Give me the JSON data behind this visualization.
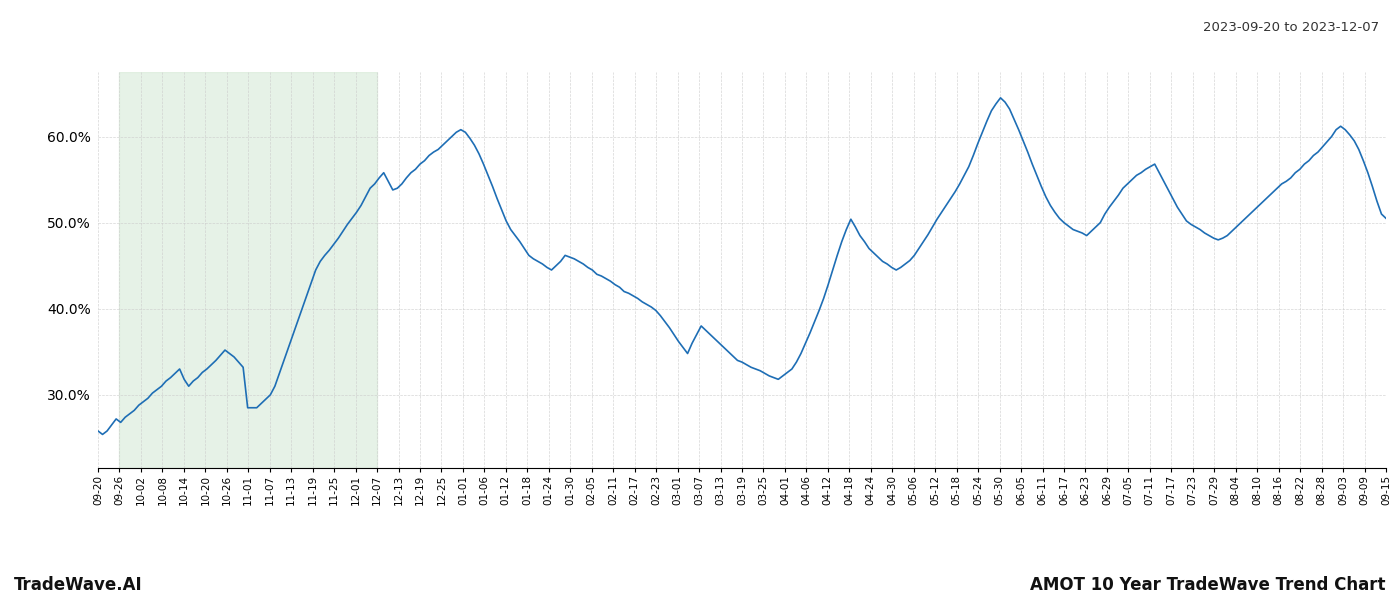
{
  "title_top_right": "2023-09-20 to 2023-12-07",
  "footer_left": "TradeWave.AI",
  "footer_right": "AMOT 10 Year TradeWave Trend Chart",
  "line_color": "#1e6eb5",
  "shade_color": "#d6ead7",
  "shade_alpha": 0.6,
  "background_color": "#ffffff",
  "grid_color": "#cccccc",
  "ylim": [
    0.215,
    0.675
  ],
  "yticks": [
    0.3,
    0.4,
    0.5,
    0.6
  ],
  "x_labels": [
    "09-20",
    "09-26",
    "10-02",
    "10-08",
    "10-14",
    "10-20",
    "10-26",
    "11-01",
    "11-07",
    "11-13",
    "11-19",
    "11-25",
    "12-01",
    "12-07",
    "12-13",
    "12-19",
    "12-25",
    "01-01",
    "01-06",
    "01-12",
    "01-18",
    "01-24",
    "01-30",
    "02-05",
    "02-11",
    "02-17",
    "02-23",
    "03-01",
    "03-07",
    "03-13",
    "03-19",
    "03-25",
    "04-01",
    "04-06",
    "04-12",
    "04-18",
    "04-24",
    "04-30",
    "05-06",
    "05-12",
    "05-18",
    "05-24",
    "05-30",
    "06-05",
    "06-11",
    "06-17",
    "06-23",
    "06-29",
    "07-05",
    "07-11",
    "07-17",
    "07-23",
    "07-29",
    "08-04",
    "08-10",
    "08-16",
    "08-22",
    "08-28",
    "09-03",
    "09-09",
    "09-15"
  ],
  "shade_start_label": "09-26",
  "shade_end_label": "12-07",
  "values": [
    0.258,
    0.254,
    0.258,
    0.265,
    0.272,
    0.268,
    0.274,
    0.278,
    0.282,
    0.288,
    0.292,
    0.296,
    0.302,
    0.306,
    0.31,
    0.316,
    0.32,
    0.325,
    0.33,
    0.318,
    0.31,
    0.316,
    0.32,
    0.326,
    0.33,
    0.335,
    0.34,
    0.346,
    0.352,
    0.348,
    0.344,
    0.338,
    0.332,
    0.285,
    0.285,
    0.285,
    0.29,
    0.295,
    0.3,
    0.31,
    0.325,
    0.34,
    0.355,
    0.37,
    0.385,
    0.4,
    0.415,
    0.43,
    0.445,
    0.455,
    0.462,
    0.468,
    0.475,
    0.482,
    0.49,
    0.498,
    0.505,
    0.512,
    0.52,
    0.53,
    0.54,
    0.545,
    0.552,
    0.558,
    0.548,
    0.538,
    0.54,
    0.545,
    0.552,
    0.558,
    0.562,
    0.568,
    0.572,
    0.578,
    0.582,
    0.585,
    0.59,
    0.595,
    0.6,
    0.605,
    0.608,
    0.605,
    0.598,
    0.59,
    0.58,
    0.568,
    0.555,
    0.542,
    0.528,
    0.515,
    0.502,
    0.492,
    0.485,
    0.478,
    0.47,
    0.462,
    0.458,
    0.455,
    0.452,
    0.448,
    0.445,
    0.45,
    0.455,
    0.462,
    0.46,
    0.458,
    0.455,
    0.452,
    0.448,
    0.445,
    0.44,
    0.438,
    0.435,
    0.432,
    0.428,
    0.425,
    0.42,
    0.418,
    0.415,
    0.412,
    0.408,
    0.405,
    0.402,
    0.398,
    0.392,
    0.385,
    0.378,
    0.37,
    0.362,
    0.355,
    0.348,
    0.36,
    0.37,
    0.38,
    0.375,
    0.37,
    0.365,
    0.36,
    0.355,
    0.35,
    0.345,
    0.34,
    0.338,
    0.335,
    0.332,
    0.33,
    0.328,
    0.325,
    0.322,
    0.32,
    0.318,
    0.322,
    0.326,
    0.33,
    0.338,
    0.348,
    0.36,
    0.372,
    0.385,
    0.398,
    0.412,
    0.428,
    0.445,
    0.462,
    0.478,
    0.492,
    0.504,
    0.495,
    0.485,
    0.478,
    0.47,
    0.465,
    0.46,
    0.455,
    0.452,
    0.448,
    0.445,
    0.448,
    0.452,
    0.456,
    0.462,
    0.47,
    0.478,
    0.486,
    0.495,
    0.504,
    0.512,
    0.52,
    0.528,
    0.536,
    0.545,
    0.555,
    0.565,
    0.578,
    0.592,
    0.605,
    0.618,
    0.63,
    0.638,
    0.645,
    0.64,
    0.632,
    0.62,
    0.608,
    0.595,
    0.582,
    0.568,
    0.555,
    0.542,
    0.53,
    0.52,
    0.512,
    0.505,
    0.5,
    0.496,
    0.492,
    0.49,
    0.488,
    0.485,
    0.49,
    0.495,
    0.5,
    0.51,
    0.518,
    0.525,
    0.532,
    0.54,
    0.545,
    0.55,
    0.555,
    0.558,
    0.562,
    0.565,
    0.568,
    0.558,
    0.548,
    0.538,
    0.528,
    0.518,
    0.51,
    0.502,
    0.498,
    0.495,
    0.492,
    0.488,
    0.485,
    0.482,
    0.48,
    0.482,
    0.485,
    0.49,
    0.495,
    0.5,
    0.505,
    0.51,
    0.515,
    0.52,
    0.525,
    0.53,
    0.535,
    0.54,
    0.545,
    0.548,
    0.552,
    0.558,
    0.562,
    0.568,
    0.572,
    0.578,
    0.582,
    0.588,
    0.594,
    0.6,
    0.608,
    0.612,
    0.608,
    0.602,
    0.595,
    0.585,
    0.572,
    0.558,
    0.542,
    0.525,
    0.51,
    0.505
  ]
}
